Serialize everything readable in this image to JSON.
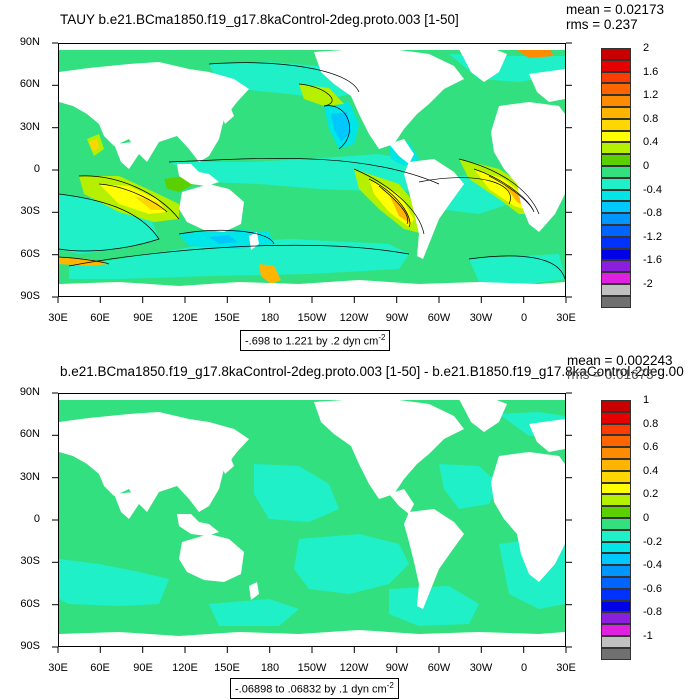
{
  "panels": [
    {
      "title": "TAUY b.e21.BCma1850.f19_g17.8kaControl-2deg.proto.003 [1-50]",
      "mean_label": "mean = 0.02173",
      "rms_label": "rms = 0.237",
      "lat_labels": [
        "90N",
        "60N",
        "30N",
        "0",
        "30S",
        "60S",
        "90S"
      ],
      "lon_labels": [
        "30E",
        "60E",
        "90E",
        "120E",
        "150E",
        "180",
        "150W",
        "120W",
        "90W",
        "60W",
        "30W",
        "0",
        "30E"
      ],
      "contour_info": "-.698 to 1.221 by .2 dyn cm",
      "contour_info_exp": "-2",
      "colorbar_labels": [
        "2",
        "1.6",
        "1.2",
        "0.8",
        "0.4",
        "0",
        "-0.4",
        "-0.8",
        "-1.2",
        "-1.6",
        "-2"
      ],
      "colorbar_colors": [
        "#c80000",
        "#e60000",
        "#ff3c00",
        "#ff6600",
        "#ff8c00",
        "#ffb400",
        "#ffd700",
        "#ffff00",
        "#b4f000",
        "#5ad000",
        "#33e07f",
        "#20f0c8",
        "#00e6e6",
        "#00c8ff",
        "#0096ff",
        "#0064ff",
        "#0032ff",
        "#0000e6",
        "#8a20dc",
        "#e020e0",
        "#c0c0c0",
        "#707070"
      ]
    },
    {
      "title": "b.e21.BCma1850.f19_g17.8kaControl-2deg.proto.003 [1-50] - b.e21.B1850.f19_g17.8kaControl-2deg.00",
      "mean_label": "mean = 0.002243",
      "rms_label": "rms = 0.01675",
      "lat_labels": [
        "90N",
        "60N",
        "30N",
        "0",
        "30S",
        "60S",
        "90S"
      ],
      "lon_labels": [
        "30E",
        "60E",
        "90E",
        "120E",
        "150E",
        "180",
        "150W",
        "120W",
        "90W",
        "60W",
        "30W",
        "0",
        "30E"
      ],
      "contour_info": "-.06898 to .06832 by .1 dyn cm",
      "contour_info_exp": "-2",
      "colorbar_labels": [
        "1",
        "0.8",
        "0.6",
        "0.4",
        "0.2",
        "0",
        "-0.2",
        "-0.4",
        "-0.6",
        "-0.8",
        "-1"
      ],
      "colorbar_colors": [
        "#c80000",
        "#e60000",
        "#ff3c00",
        "#ff6600",
        "#ff8c00",
        "#ffb400",
        "#ffd700",
        "#ffff00",
        "#b4f000",
        "#5ad000",
        "#33e07f",
        "#20f0c8",
        "#00e6e6",
        "#00c8ff",
        "#0096ff",
        "#0064ff",
        "#0032ff",
        "#0000e6",
        "#8a20dc",
        "#e020e0",
        "#c0c0c0",
        "#707070"
      ]
    }
  ]
}
